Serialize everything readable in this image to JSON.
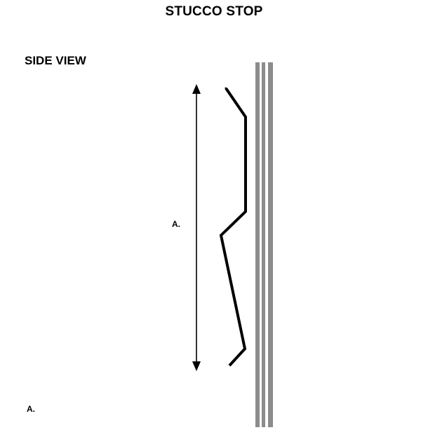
{
  "title": "STUCCO STOP",
  "view_label": "SIDE VIEW",
  "dimension_label": "A.",
  "footnote_label": "A.",
  "colors": {
    "profile": "#000000",
    "wall": "#8c8c8c",
    "dimension_line": "#000000"
  }
}
